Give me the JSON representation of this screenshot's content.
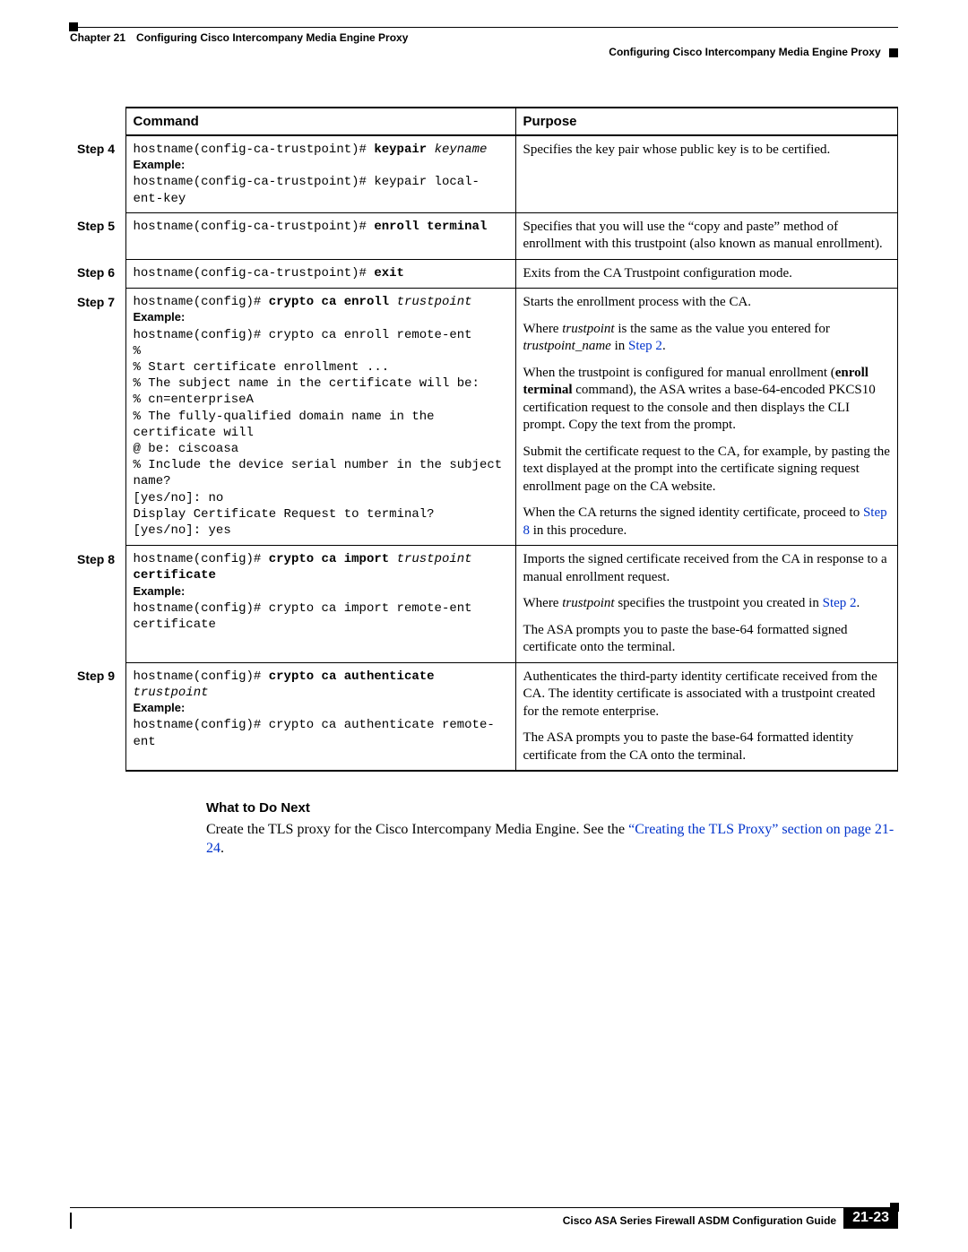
{
  "header": {
    "chapter": "Chapter 21 Configuring Cisco Intercompany Media Engine Proxy",
    "section": "Configuring Cisco Intercompany Media Engine Proxy"
  },
  "table": {
    "headers": {
      "command": "Command",
      "purpose": "Purpose"
    },
    "rows": [
      {
        "step": "Step 4",
        "command_html": "hostname(config-ca-trustpoint)# <b>keypair</b> <i>keyname</i>\n<span class='sans-bold'>Example:</span>\nhostname(config-ca-trustpoint)# keypair local-ent-key",
        "purpose_html": "<p>Specifies the key pair whose public key is to be certified.</p>"
      },
      {
        "step": "Step 5",
        "command_html": "hostname(config-ca-trustpoint)# <b>enroll terminal</b>",
        "purpose_html": "<p>Specifies that you will use the “copy and paste” method of enrollment with this trustpoint (also known as manual enrollment).</p>"
      },
      {
        "step": "Step 6",
        "command_html": "hostname(config-ca-trustpoint)# <b>exit</b>",
        "purpose_html": "<p>Exits from the CA Trustpoint configuration mode.</p>"
      },
      {
        "step": "Step 7",
        "command_html": "hostname(config)# <b>crypto ca enroll</b> <i>trustpoint</i>\n<span class='sans-bold'>Example:</span>\nhostname(config)# crypto ca enroll remote-ent\n%\n% Start certificate enrollment ...\n% The subject name in the certificate will be:\n% cn=enterpriseA\n% The fully-qualified domain name in the certificate will\n@ be: ciscoasa\n% Include the device serial number in the subject name?\n[yes/no]: no\nDisplay Certificate Request to terminal? [yes/no]: yes",
        "purpose_html": "<p>Starts the enrollment process with the CA.</p><p>Where <span class='serif-ital'>trustpoint</span> is the same as the value you entered for <span class='serif-ital'>trustpoint_name</span> in <span class='link'>Step 2</span>.</p><p>When the trustpoint is configured for manual enrollment (<span class='serif-bold'>enroll terminal</span> command), the ASA writes a base-64-encoded PKCS10 certification request to the console and then displays the CLI prompt. Copy the text from the prompt.</p><p>Submit the certificate request to the CA, for example, by pasting the text displayed at the prompt into the certificate signing request enrollment page on the CA website.</p><p>When the CA returns the signed identity certificate, proceed to <span class='link'>Step 8</span> in this procedure.</p>"
      },
      {
        "step": "Step 8",
        "command_html": "hostname(config)# <b>crypto ca import</b> <i>trustpoint</i> <b>certificate</b>\n<span class='sans-bold'>Example:</span>\nhostname(config)# crypto ca import remote-ent certificate",
        "purpose_html": "<p>Imports the signed certificate received from the CA in response to a manual enrollment request.</p><p>Where <span class='serif-ital'>trustpoint</span> specifies the trustpoint you created in <span class='link'>Step 2</span>.</p><p>The ASA prompts you to paste the base-64 formatted signed certificate onto the terminal.</p>"
      },
      {
        "step": "Step 9",
        "command_html": "hostname(config)# <b>crypto ca authenticate</b> <i>trustpoint</i>\n<span class='sans-bold'>Example:</span>\nhostname(config)# crypto ca authenticate remote-ent",
        "purpose_html": "<p>Authenticates the third-party identity certificate received from the CA. The identity certificate is associated with a trustpoint created for the remote enterprise.</p><p>The ASA prompts you to paste the base-64 formatted identity certificate from the CA onto the terminal.</p>"
      }
    ]
  },
  "what_next": {
    "heading": "What to Do Next",
    "body_prefix": "Create the TLS proxy for the Cisco Intercompany Media Engine. See the ",
    "link": "“Creating the TLS Proxy” section on page 21-24",
    "body_suffix": "."
  },
  "footer": {
    "title": "Cisco ASA Series Firewall ASDM Configuration Guide",
    "page": "21-23"
  },
  "colors": {
    "link": "#0033cc",
    "text": "#000000",
    "bg": "#ffffff",
    "pagebox_bg": "#000000",
    "pagebox_fg": "#ffffff"
  }
}
